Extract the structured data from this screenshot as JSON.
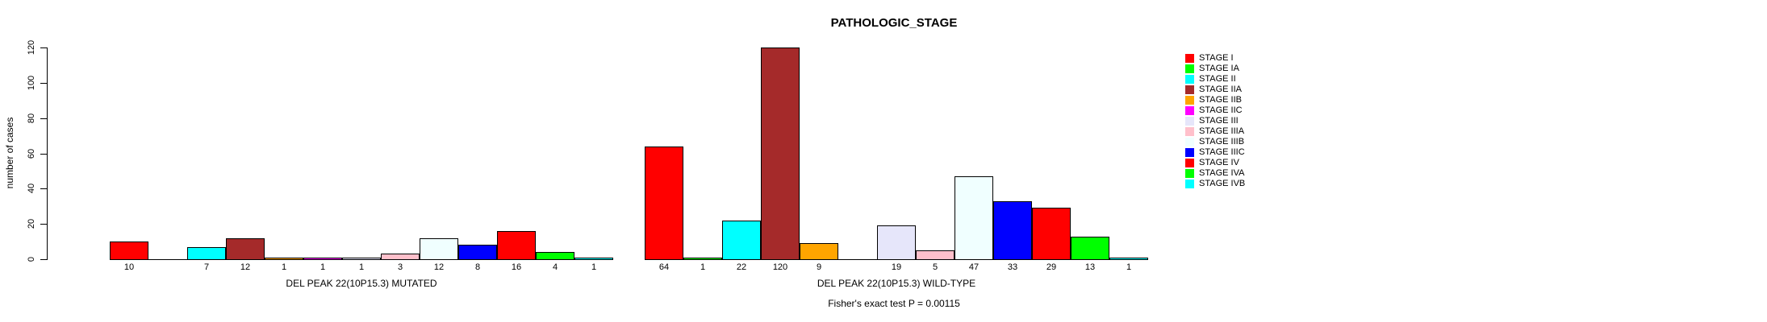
{
  "title": "PATHOLOGIC_STAGE",
  "annotation": "Fisher's exact test P = 0.00115",
  "y_axis": {
    "label": "number of cases",
    "ticks": [
      0,
      20,
      40,
      60,
      80,
      100,
      120
    ]
  },
  "legend": {
    "items": [
      {
        "label": "STAGE I",
        "color": "#FF0000"
      },
      {
        "label": "STAGE IA",
        "color": "#00FF00"
      },
      {
        "label": "STAGE II",
        "color": "#00FFFF"
      },
      {
        "label": "STAGE IIA",
        "color": "#A52A2A"
      },
      {
        "label": "STAGE IIB",
        "color": "#FFA500"
      },
      {
        "label": "STAGE IIC",
        "color": "#FF00FF"
      },
      {
        "label": "STAGE III",
        "color": "#E6E6FA"
      },
      {
        "label": "STAGE IIIA",
        "color": "#FFC0CB"
      },
      {
        "label": "STAGE IIIB",
        "color": "#F0FFFF"
      },
      {
        "label": "STAGE IIIC",
        "color": "#0000FF"
      },
      {
        "label": "STAGE IV",
        "color": "#FF0000"
      },
      {
        "label": "STAGE IVA",
        "color": "#00FF00"
      },
      {
        "label": "STAGE IVB",
        "color": "#00FFFF"
      }
    ]
  },
  "chart_data": {
    "type": "bar",
    "title": "PATHOLOGIC_STAGE",
    "xlabel": "",
    "ylabel": "number of cases",
    "ylim": [
      0,
      120
    ],
    "yticks": [
      0,
      20,
      40,
      60,
      80,
      100,
      120
    ],
    "grid": false,
    "legend_position": "right",
    "annotation": "Fisher's exact test P = 0.00115",
    "categories": [
      "STAGE I",
      "STAGE IA",
      "STAGE II",
      "STAGE IIA",
      "STAGE IIB",
      "STAGE IIC",
      "STAGE III",
      "STAGE IIIA",
      "STAGE IIIB",
      "STAGE IIIC",
      "STAGE IV",
      "STAGE IVA",
      "STAGE IVB"
    ],
    "colors": [
      "#FF0000",
      "#00FF00",
      "#00FFFF",
      "#A52A2A",
      "#FFA500",
      "#FF00FF",
      "#E6E6FA",
      "#FFC0CB",
      "#F0FFFF",
      "#0000FF",
      "#FF0000",
      "#00FF00",
      "#00FFFF"
    ],
    "series": [
      {
        "name": "DEL PEAK 22(10P15.3) MUTATED",
        "values": [
          10,
          0,
          7,
          12,
          1,
          1,
          1,
          3,
          12,
          8,
          16,
          4,
          1
        ]
      },
      {
        "name": "DEL PEAK 22(10P15.3) WILD-TYPE",
        "values": [
          64,
          1,
          22,
          120,
          9,
          0,
          19,
          5,
          47,
          33,
          29,
          13,
          1
        ]
      }
    ],
    "bar_labels_shown_for_nonzero_only": true
  }
}
